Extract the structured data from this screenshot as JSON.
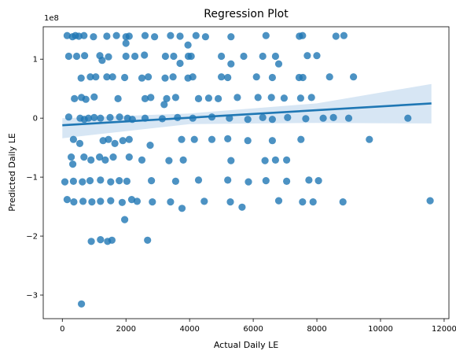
{
  "chart_data": {
    "type": "scatter",
    "title": "Regression Plot",
    "xlabel": "Actual Daily LE",
    "ylabel": "Predicted Daily LE",
    "y_multiplier_label": "1e8",
    "xlim": [
      -600,
      12150
    ],
    "ylim": [
      -3.4,
      1.55
    ],
    "x_ticks": [
      0,
      2000,
      4000,
      6000,
      8000,
      10000,
      12000
    ],
    "x_tick_labels": [
      "0",
      "2000",
      "4000",
      "6000",
      "8000",
      "10000",
      "12000"
    ],
    "y_ticks": [
      -3,
      -2,
      -1,
      0,
      1
    ],
    "y_tick_labels": [
      "−3",
      "−2",
      "−1",
      "0",
      "1"
    ],
    "grid": false,
    "point_color": "#1f77b4",
    "regression": {
      "color": "#1f77b4",
      "band_color": "#c6dbef",
      "line": [
        [
          0,
          -0.12
        ],
        [
          11600,
          0.25
        ]
      ],
      "ci_upper": [
        [
          0,
          0.0
        ],
        [
          4000,
          0.08
        ],
        [
          8000,
          0.25
        ],
        [
          11600,
          0.58
        ]
      ],
      "ci_lower": [
        [
          0,
          -0.34
        ],
        [
          4000,
          -0.1
        ],
        [
          8000,
          -0.08
        ],
        [
          11600,
          -0.09
        ]
      ]
    },
    "points": [
      [
        150,
        1.4
      ],
      [
        320,
        1.38
      ],
      [
        410,
        1.4
      ],
      [
        520,
        1.39
      ],
      [
        680,
        1.4
      ],
      [
        980,
        1.38
      ],
      [
        1400,
        1.39
      ],
      [
        1700,
        1.4
      ],
      [
        2000,
        1.38
      ],
      [
        2100,
        1.39
      ],
      [
        2600,
        1.4
      ],
      [
        2900,
        1.38
      ],
      [
        3400,
        1.4
      ],
      [
        3700,
        1.39
      ],
      [
        4200,
        1.4
      ],
      [
        4500,
        1.38
      ],
      [
        5300,
        1.38
      ],
      [
        6400,
        1.4
      ],
      [
        7450,
        1.39
      ],
      [
        7550,
        1.4
      ],
      [
        8600,
        1.39
      ],
      [
        8850,
        1.4
      ],
      [
        2000,
        1.27
      ],
      [
        3950,
        1.24
      ],
      [
        200,
        1.05
      ],
      [
        450,
        1.05
      ],
      [
        700,
        1.06
      ],
      [
        1180,
        1.06
      ],
      [
        1450,
        1.04
      ],
      [
        2000,
        1.05
      ],
      [
        2280,
        1.05
      ],
      [
        2580,
        1.07
      ],
      [
        3240,
        1.05
      ],
      [
        3500,
        1.05
      ],
      [
        3960,
        1.05
      ],
      [
        4050,
        1.05
      ],
      [
        5000,
        1.05
      ],
      [
        5700,
        1.05
      ],
      [
        6300,
        1.05
      ],
      [
        6700,
        1.05
      ],
      [
        7700,
        1.06
      ],
      [
        8000,
        1.06
      ],
      [
        3700,
        0.93
      ],
      [
        5300,
        0.92
      ],
      [
        6800,
        0.92
      ],
      [
        1250,
        0.98
      ],
      [
        590,
        0.68
      ],
      [
        880,
        0.7
      ],
      [
        1050,
        0.7
      ],
      [
        1400,
        0.7
      ],
      [
        1580,
        0.7
      ],
      [
        1960,
        0.69
      ],
      [
        2500,
        0.68
      ],
      [
        2700,
        0.7
      ],
      [
        3230,
        0.68
      ],
      [
        3480,
        0.7
      ],
      [
        3950,
        0.68
      ],
      [
        4100,
        0.7
      ],
      [
        5000,
        0.7
      ],
      [
        5200,
        0.69
      ],
      [
        6100,
        0.7
      ],
      [
        6600,
        0.69
      ],
      [
        7440,
        0.69
      ],
      [
        7560,
        0.69
      ],
      [
        8400,
        0.7
      ],
      [
        9150,
        0.7
      ],
      [
        380,
        0.33
      ],
      [
        600,
        0.35
      ],
      [
        740,
        0.32
      ],
      [
        1000,
        0.36
      ],
      [
        1750,
        0.33
      ],
      [
        2600,
        0.33
      ],
      [
        2780,
        0.35
      ],
      [
        3280,
        0.33
      ],
      [
        3560,
        0.35
      ],
      [
        4280,
        0.33
      ],
      [
        4600,
        0.34
      ],
      [
        4900,
        0.33
      ],
      [
        5500,
        0.35
      ],
      [
        6150,
        0.35
      ],
      [
        6570,
        0.35
      ],
      [
        6970,
        0.34
      ],
      [
        7490,
        0.34
      ],
      [
        7830,
        0.35
      ],
      [
        3200,
        0.23
      ],
      [
        200,
        0.02
      ],
      [
        560,
        0.0
      ],
      [
        690,
        -0.02
      ],
      [
        820,
        0.0
      ],
      [
        1000,
        0.01
      ],
      [
        1200,
        0.0
      ],
      [
        1500,
        0.01
      ],
      [
        1800,
        0.02
      ],
      [
        2050,
        0.0
      ],
      [
        2200,
        -0.02
      ],
      [
        2600,
        0.0
      ],
      [
        3140,
        -0.01
      ],
      [
        3620,
        0.01
      ],
      [
        4100,
        0.0
      ],
      [
        4700,
        0.02
      ],
      [
        5250,
        0.0
      ],
      [
        5830,
        -0.02
      ],
      [
        6300,
        0.01
      ],
      [
        6600,
        -0.02
      ],
      [
        7080,
        0.01
      ],
      [
        7650,
        -0.01
      ],
      [
        8200,
        0.0
      ],
      [
        8520,
        0.01
      ],
      [
        9000,
        0.0
      ],
      [
        10860,
        0.0
      ],
      [
        350,
        -0.36
      ],
      [
        550,
        -0.43
      ],
      [
        1280,
        -0.38
      ],
      [
        1450,
        -0.36
      ],
      [
        1650,
        -0.43
      ],
      [
        1900,
        -0.38
      ],
      [
        2100,
        -0.36
      ],
      [
        2760,
        -0.46
      ],
      [
        3750,
        -0.36
      ],
      [
        4150,
        -0.36
      ],
      [
        4700,
        -0.36
      ],
      [
        5200,
        -0.35
      ],
      [
        5830,
        -0.38
      ],
      [
        6600,
        -0.38
      ],
      [
        7500,
        -0.36
      ],
      [
        9650,
        -0.36
      ],
      [
        280,
        -0.66
      ],
      [
        330,
        -0.78
      ],
      [
        680,
        -0.66
      ],
      [
        900,
        -0.71
      ],
      [
        1170,
        -0.66
      ],
      [
        1350,
        -0.71
      ],
      [
        1600,
        -0.66
      ],
      [
        2100,
        -0.66
      ],
      [
        2500,
        -0.71
      ],
      [
        3350,
        -0.72
      ],
      [
        3800,
        -0.71
      ],
      [
        5300,
        -0.72
      ],
      [
        6370,
        -0.72
      ],
      [
        6700,
        -0.71
      ],
      [
        7050,
        -0.71
      ],
      [
        80,
        -1.08
      ],
      [
        350,
        -1.07
      ],
      [
        630,
        -1.08
      ],
      [
        870,
        -1.06
      ],
      [
        1200,
        -1.05
      ],
      [
        1520,
        -1.08
      ],
      [
        1790,
        -1.06
      ],
      [
        2030,
        -1.07
      ],
      [
        2800,
        -1.06
      ],
      [
        3560,
        -1.07
      ],
      [
        4280,
        -1.05
      ],
      [
        5200,
        -1.05
      ],
      [
        5850,
        -1.08
      ],
      [
        6400,
        -1.06
      ],
      [
        7050,
        -1.07
      ],
      [
        7750,
        -1.05
      ],
      [
        8050,
        -1.06
      ],
      [
        2180,
        -1.38
      ],
      [
        150,
        -1.38
      ],
      [
        360,
        -1.42
      ],
      [
        650,
        -1.41
      ],
      [
        930,
        -1.42
      ],
      [
        1200,
        -1.41
      ],
      [
        1520,
        -1.4
      ],
      [
        1880,
        -1.43
      ],
      [
        2350,
        -1.41
      ],
      [
        2830,
        -1.42
      ],
      [
        3400,
        -1.42
      ],
      [
        3760,
        -1.53
      ],
      [
        4460,
        -1.41
      ],
      [
        5280,
        -1.42
      ],
      [
        5650,
        -1.51
      ],
      [
        6800,
        -1.4
      ],
      [
        7550,
        -1.42
      ],
      [
        7880,
        -1.42
      ],
      [
        8820,
        -1.42
      ],
      [
        11560,
        -1.4
      ],
      [
        910,
        -2.09
      ],
      [
        1200,
        -2.06
      ],
      [
        1420,
        -2.09
      ],
      [
        1560,
        -2.07
      ],
      [
        2680,
        -2.07
      ],
      [
        1960,
        -1.72
      ],
      [
        600,
        -3.15
      ]
    ]
  }
}
